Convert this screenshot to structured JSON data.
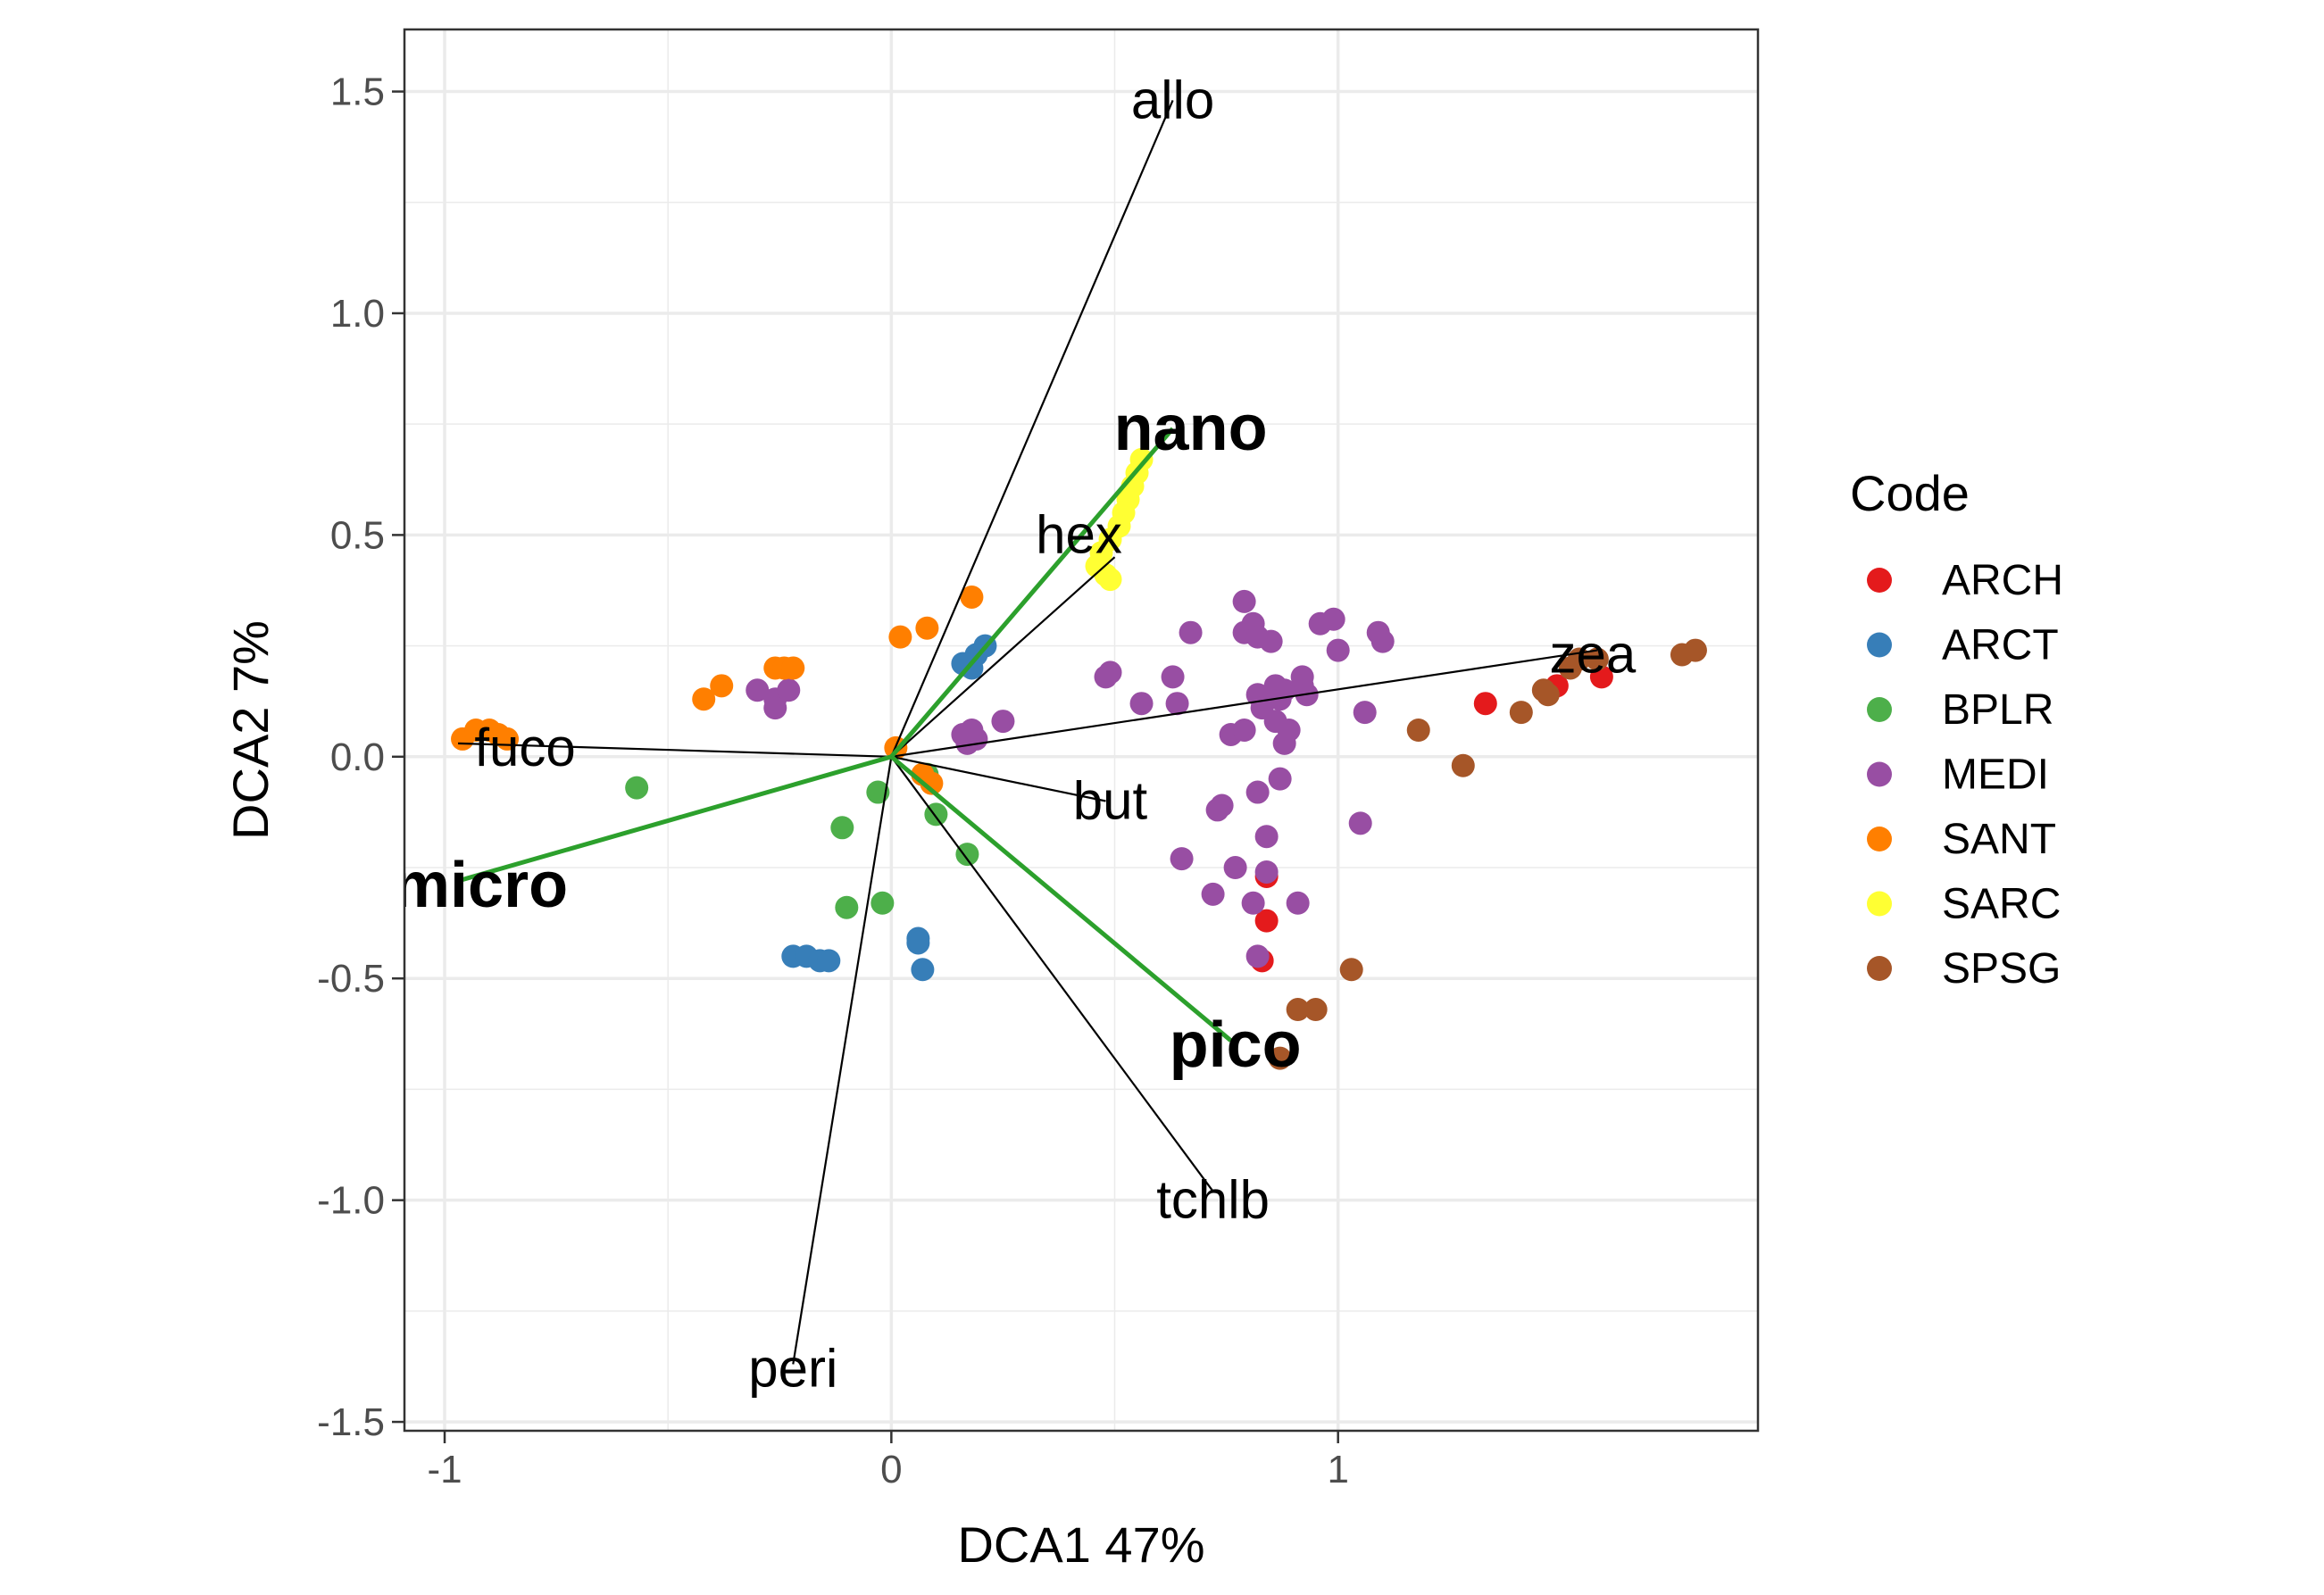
{
  "chart_data": {
    "type": "scatter",
    "title": "",
    "xlabel": "DCA1 47%",
    "ylabel": "DCA2 7%",
    "xlim": [
      -1.09,
      1.94
    ],
    "ylim": [
      -1.52,
      1.64
    ],
    "x_ticks": [
      -1,
      0,
      1
    ],
    "x_tick_labels": [
      "-1",
      "0",
      "1"
    ],
    "y_ticks": [
      -1.5,
      -1.0,
      -0.5,
      0.0,
      0.5,
      1.0,
      1.5
    ],
    "y_tick_labels": [
      "-1.5",
      "-1.0",
      "-0.5",
      "0.0",
      "0.5",
      "1.0",
      "1.5"
    ],
    "grid": true,
    "legend": {
      "title": "Code",
      "position": "right"
    },
    "series": [
      {
        "name": "ARCH",
        "color": "#e41a1c",
        "points": [
          [
            1.33,
            0.12
          ],
          [
            1.49,
            0.16
          ],
          [
            1.59,
            0.18
          ],
          [
            0.84,
            -0.27
          ],
          [
            0.84,
            -0.37
          ],
          [
            0.83,
            -0.46
          ]
        ]
      },
      {
        "name": "ARCT",
        "color": "#377eb8",
        "points": [
          [
            0.19,
            0.23
          ],
          [
            0.21,
            0.25
          ],
          [
            0.18,
            0.2
          ],
          [
            0.16,
            0.21
          ],
          [
            -0.22,
            -0.45
          ],
          [
            -0.19,
            -0.45
          ],
          [
            -0.16,
            -0.46
          ],
          [
            -0.14,
            -0.46
          ],
          [
            0.06,
            -0.41
          ],
          [
            0.06,
            -0.42
          ],
          [
            0.07,
            -0.48
          ]
        ]
      },
      {
        "name": "BPLR",
        "color": "#4daf4a",
        "points": [
          [
            -0.57,
            -0.07
          ],
          [
            -0.11,
            -0.16
          ],
          [
            -0.1,
            -0.34
          ],
          [
            -0.02,
            -0.33
          ],
          [
            -0.03,
            -0.08
          ],
          [
            0.1,
            -0.13
          ],
          [
            0.17,
            -0.22
          ],
          [
            0.08,
            -0.04
          ]
        ]
      },
      {
        "name": "MEDI",
        "color": "#984ea3",
        "points": [
          [
            -0.3,
            0.15
          ],
          [
            -0.26,
            0.13
          ],
          [
            -0.26,
            0.11
          ],
          [
            -0.23,
            0.15
          ],
          [
            0.16,
            0.05
          ],
          [
            0.17,
            0.03
          ],
          [
            0.18,
            0.06
          ],
          [
            0.19,
            0.04
          ],
          [
            0.25,
            0.08
          ],
          [
            0.48,
            0.18
          ],
          [
            0.49,
            0.19
          ],
          [
            0.56,
            0.12
          ],
          [
            0.63,
            0.18
          ],
          [
            0.64,
            0.12
          ],
          [
            0.67,
            0.28
          ],
          [
            0.73,
            -0.12
          ],
          [
            0.74,
            -0.11
          ],
          [
            0.76,
            0.05
          ],
          [
            0.79,
            0.06
          ],
          [
            0.79,
            0.35
          ],
          [
            0.79,
            0.28
          ],
          [
            0.81,
            0.3
          ],
          [
            0.82,
            0.27
          ],
          [
            0.82,
            0.14
          ],
          [
            0.83,
            0.11
          ],
          [
            0.84,
            -0.18
          ],
          [
            0.82,
            -0.08
          ],
          [
            0.85,
            0.26
          ],
          [
            0.86,
            0.08
          ],
          [
            0.86,
            0.16
          ],
          [
            0.87,
            0.13
          ],
          [
            0.88,
            0.15
          ],
          [
            0.88,
            0.03
          ],
          [
            0.89,
            0.06
          ],
          [
            0.92,
            0.18
          ],
          [
            0.92,
            0.16
          ],
          [
            0.93,
            0.14
          ],
          [
            0.96,
            0.3
          ],
          [
            0.99,
            0.31
          ],
          [
            1.0,
            0.24
          ],
          [
            1.06,
            0.1
          ],
          [
            1.09,
            0.28
          ],
          [
            1.1,
            0.26
          ],
          [
            0.65,
            -0.23
          ],
          [
            0.77,
            -0.25
          ],
          [
            0.72,
            -0.31
          ],
          [
            0.81,
            -0.33
          ],
          [
            0.84,
            -0.26
          ],
          [
            0.91,
            -0.33
          ],
          [
            0.82,
            -0.45
          ],
          [
            1.05,
            -0.15
          ],
          [
            0.87,
            -0.05
          ]
        ]
      },
      {
        "name": "SANT",
        "color": "#ff7f00",
        "points": [
          [
            -0.96,
            0.04
          ],
          [
            -0.93,
            0.06
          ],
          [
            -0.9,
            0.06
          ],
          [
            -0.88,
            0.05
          ],
          [
            -0.86,
            0.04
          ],
          [
            -0.42,
            0.13
          ],
          [
            -0.38,
            0.16
          ],
          [
            -0.26,
            0.2
          ],
          [
            -0.24,
            0.2
          ],
          [
            -0.22,
            0.2
          ],
          [
            0.02,
            0.27
          ],
          [
            0.08,
            0.29
          ],
          [
            0.18,
            0.36
          ],
          [
            0.01,
            0.02
          ],
          [
            0.09,
            -0.06
          ],
          [
            0.07,
            -0.04
          ]
        ]
      },
      {
        "name": "SARC",
        "color": "#ffff33",
        "points": [
          [
            0.56,
            0.67
          ],
          [
            0.55,
            0.64
          ],
          [
            0.54,
            0.61
          ],
          [
            0.53,
            0.58
          ],
          [
            0.52,
            0.55
          ],
          [
            0.51,
            0.52
          ],
          [
            0.49,
            0.49
          ],
          [
            0.47,
            0.46
          ],
          [
            0.46,
            0.43
          ],
          [
            0.48,
            0.41
          ],
          [
            0.49,
            0.4
          ]
        ]
      },
      {
        "name": "SPSG",
        "color": "#a65628",
        "points": [
          [
            1.18,
            0.06
          ],
          [
            1.28,
            -0.02
          ],
          [
            1.41,
            0.1
          ],
          [
            1.46,
            0.15
          ],
          [
            1.47,
            0.14
          ],
          [
            1.52,
            0.2
          ],
          [
            1.54,
            0.22
          ],
          [
            1.58,
            0.22
          ],
          [
            1.77,
            0.23
          ],
          [
            1.8,
            0.24
          ],
          [
            1.03,
            -0.48
          ],
          [
            0.91,
            -0.57
          ],
          [
            0.95,
            -0.57
          ],
          [
            0.87,
            -0.68
          ]
        ]
      }
    ],
    "pigment_vectors": [
      {
        "name": "allo",
        "end": [
          0.63,
          1.48
        ],
        "label": [
          0.63,
          1.48
        ]
      },
      {
        "name": "hex",
        "end": [
          0.5,
          0.45
        ],
        "label": [
          0.42,
          0.5
        ]
      },
      {
        "name": "fuco",
        "end": [
          -0.97,
          0.03
        ],
        "label": [
          -0.82,
          0.02
        ]
      },
      {
        "name": "but",
        "end": [
          0.48,
          -0.1
        ],
        "label": [
          0.49,
          -0.1
        ]
      },
      {
        "name": "zea",
        "end": [
          1.58,
          0.24
        ],
        "label": [
          1.57,
          0.23
        ]
      },
      {
        "name": "tchlb",
        "end": [
          0.72,
          -0.98
        ],
        "label": [
          0.72,
          -1.0
        ]
      },
      {
        "name": "peri",
        "end": [
          -0.22,
          -1.37
        ],
        "label": [
          -0.22,
          -1.38
        ]
      }
    ],
    "size_class_vectors": [
      {
        "name": "nano",
        "end": [
          0.63,
          0.74
        ],
        "label": [
          0.67,
          0.74
        ]
      },
      {
        "name": "micro",
        "end": [
          -0.97,
          -0.28
        ],
        "label": [
          -0.92,
          -0.29
        ]
      },
      {
        "name": "pico",
        "end": [
          0.76,
          -0.64
        ],
        "label": [
          0.77,
          -0.65
        ]
      }
    ]
  }
}
